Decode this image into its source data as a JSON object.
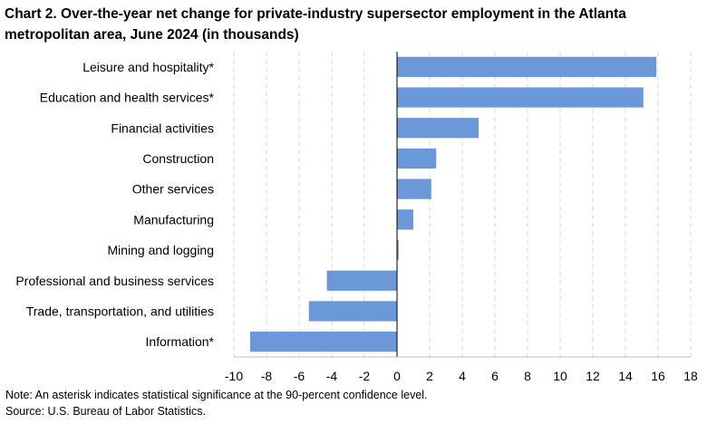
{
  "title": "Chart 2. Over-the-year net change for private-industry supersector employment in the Atlanta metropolitan area, June 2024 (in thousands)",
  "note": "Note: An asterisk indicates statistical significance at the 90-percent confidence level.",
  "source": "Source: U.S. Bureau of Labor Statistics.",
  "colors": {
    "bar": "#6B98D8",
    "grid": "#D9D9D9",
    "axis": "#000000"
  },
  "chart_data": {
    "type": "bar",
    "orientation": "horizontal",
    "categories": [
      "Leisure and hospitality*",
      "Education and health services*",
      "Financial activities",
      "Construction",
      "Other services",
      "Manufacturing",
      "Mining and logging",
      "Professional and business services",
      "Trade, transportation, and utilities",
      "Information*"
    ],
    "values": [
      15.9,
      15.1,
      5.0,
      2.4,
      2.1,
      1.0,
      0.1,
      -4.3,
      -5.4,
      -9.0
    ],
    "xlim": [
      -10,
      18
    ],
    "xticks": [
      -10,
      -8,
      -6,
      -4,
      -2,
      0,
      2,
      4,
      6,
      8,
      10,
      12,
      14,
      16,
      18
    ],
    "grid": "vertical dashed",
    "legend": "none"
  }
}
